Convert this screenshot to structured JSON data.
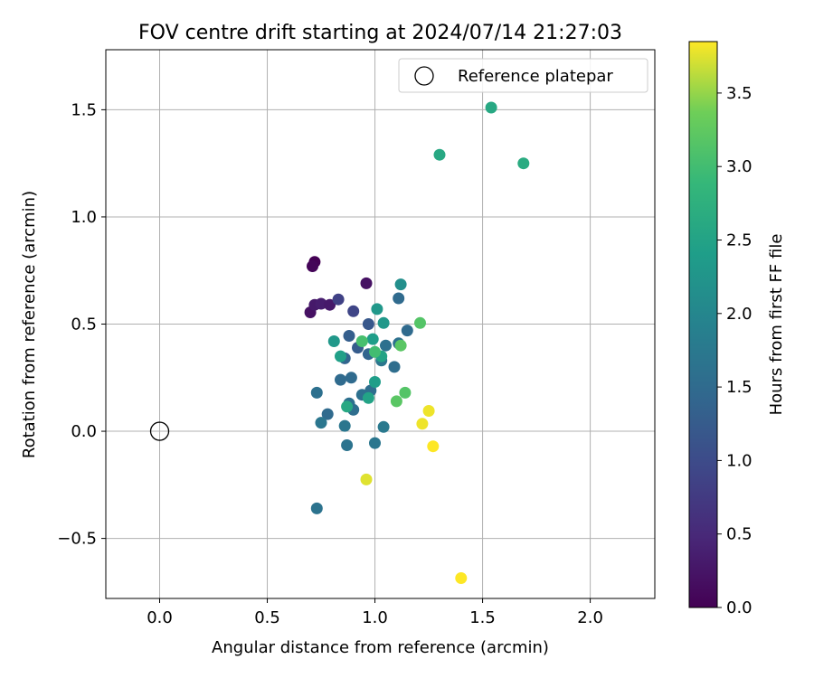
{
  "chart_data": {
    "type": "scatter",
    "title": "FOV centre drift starting at 2024/07/14 21:27:03",
    "xlabel": "Angular distance from reference (arcmin)",
    "ylabel": "Rotation from reference (arcmin)",
    "xlim": [
      -0.25,
      2.3
    ],
    "ylim": [
      -0.78,
      1.78
    ],
    "xticks": [
      0.0,
      0.5,
      1.0,
      1.5,
      2.0
    ],
    "xtick_labels": [
      "0.0",
      "0.5",
      "1.0",
      "1.5",
      "2.0"
    ],
    "yticks": [
      -0.5,
      0.0,
      0.5,
      1.0,
      1.5
    ],
    "ytick_labels": [
      "−0.5",
      "0.0",
      "0.5",
      "1.0",
      "1.5"
    ],
    "grid": true,
    "legend": {
      "position": "top-right",
      "label": "Reference platepar"
    },
    "reference_point": {
      "x": 0.0,
      "y": 0.0
    },
    "colorbar": {
      "label": "Hours from first FF file",
      "colormap": "viridis",
      "range": [
        0.0,
        3.85
      ],
      "ticks": [
        0.0,
        0.5,
        1.0,
        1.5,
        2.0,
        2.5,
        3.0,
        3.5
      ],
      "tick_labels": [
        "0.0",
        "0.5",
        "1.0",
        "1.5",
        "2.0",
        "2.5",
        "3.0",
        "3.5"
      ]
    },
    "points": [
      {
        "x": 0.72,
        "y": 0.79,
        "h": 0.0
      },
      {
        "x": 0.71,
        "y": 0.77,
        "h": 0.05
      },
      {
        "x": 0.7,
        "y": 0.555,
        "h": 0.2
      },
      {
        "x": 0.72,
        "y": 0.59,
        "h": 0.3
      },
      {
        "x": 0.75,
        "y": 0.595,
        "h": 0.35
      },
      {
        "x": 0.79,
        "y": 0.59,
        "h": 0.3
      },
      {
        "x": 0.96,
        "y": 0.69,
        "h": 0.2
      },
      {
        "x": 0.83,
        "y": 0.615,
        "h": 0.85
      },
      {
        "x": 0.9,
        "y": 0.56,
        "h": 0.9
      },
      {
        "x": 0.97,
        "y": 0.5,
        "h": 1.2
      },
      {
        "x": 0.88,
        "y": 0.445,
        "h": 1.3
      },
      {
        "x": 0.92,
        "y": 0.39,
        "h": 1.25
      },
      {
        "x": 0.86,
        "y": 0.34,
        "h": 1.4
      },
      {
        "x": 0.97,
        "y": 0.36,
        "h": 1.4
      },
      {
        "x": 1.11,
        "y": 0.62,
        "h": 1.5
      },
      {
        "x": 1.15,
        "y": 0.47,
        "h": 1.5
      },
      {
        "x": 1.05,
        "y": 0.4,
        "h": 1.6
      },
      {
        "x": 1.11,
        "y": 0.41,
        "h": 1.6
      },
      {
        "x": 1.09,
        "y": 0.3,
        "h": 1.55
      },
      {
        "x": 1.03,
        "y": 0.33,
        "h": 1.7
      },
      {
        "x": 0.84,
        "y": 0.24,
        "h": 1.5
      },
      {
        "x": 0.89,
        "y": 0.25,
        "h": 1.5
      },
      {
        "x": 0.98,
        "y": 0.19,
        "h": 1.55
      },
      {
        "x": 0.94,
        "y": 0.17,
        "h": 1.6
      },
      {
        "x": 0.73,
        "y": 0.18,
        "h": 1.6
      },
      {
        "x": 0.78,
        "y": 0.08,
        "h": 1.5
      },
      {
        "x": 0.88,
        "y": 0.13,
        "h": 1.6
      },
      {
        "x": 0.9,
        "y": 0.1,
        "h": 1.55
      },
      {
        "x": 0.75,
        "y": 0.04,
        "h": 1.7
      },
      {
        "x": 0.86,
        "y": 0.025,
        "h": 1.7
      },
      {
        "x": 1.04,
        "y": 0.02,
        "h": 1.75
      },
      {
        "x": 0.87,
        "y": -0.065,
        "h": 1.65
      },
      {
        "x": 1.0,
        "y": -0.055,
        "h": 1.7
      },
      {
        "x": 0.73,
        "y": -0.36,
        "h": 1.65
      },
      {
        "x": 0.81,
        "y": 0.42,
        "h": 2.3
      },
      {
        "x": 0.84,
        "y": 0.35,
        "h": 2.45
      },
      {
        "x": 1.12,
        "y": 0.685,
        "h": 2.15
      },
      {
        "x": 1.01,
        "y": 0.57,
        "h": 2.3
      },
      {
        "x": 1.04,
        "y": 0.505,
        "h": 2.3
      },
      {
        "x": 0.99,
        "y": 0.43,
        "h": 2.4
      },
      {
        "x": 1.03,
        "y": 0.35,
        "h": 2.5
      },
      {
        "x": 1.0,
        "y": 0.23,
        "h": 2.4
      },
      {
        "x": 0.97,
        "y": 0.155,
        "h": 2.5
      },
      {
        "x": 0.87,
        "y": 0.115,
        "h": 2.6
      },
      {
        "x": 1.3,
        "y": 1.29,
        "h": 2.6
      },
      {
        "x": 1.54,
        "y": 1.51,
        "h": 2.6
      },
      {
        "x": 1.69,
        "y": 1.25,
        "h": 2.65
      },
      {
        "x": 0.94,
        "y": 0.42,
        "h": 3.05
      },
      {
        "x": 1.0,
        "y": 0.37,
        "h": 3.0
      },
      {
        "x": 1.21,
        "y": 0.505,
        "h": 3.15
      },
      {
        "x": 1.12,
        "y": 0.4,
        "h": 3.2
      },
      {
        "x": 1.14,
        "y": 0.18,
        "h": 3.15
      },
      {
        "x": 1.1,
        "y": 0.14,
        "h": 3.2
      },
      {
        "x": 1.25,
        "y": 0.095,
        "h": 3.8
      },
      {
        "x": 1.22,
        "y": 0.035,
        "h": 3.8
      },
      {
        "x": 1.27,
        "y": -0.07,
        "h": 3.85
      },
      {
        "x": 0.96,
        "y": -0.225,
        "h": 3.75
      },
      {
        "x": 1.4,
        "y": -0.685,
        "h": 3.85
      }
    ]
  }
}
